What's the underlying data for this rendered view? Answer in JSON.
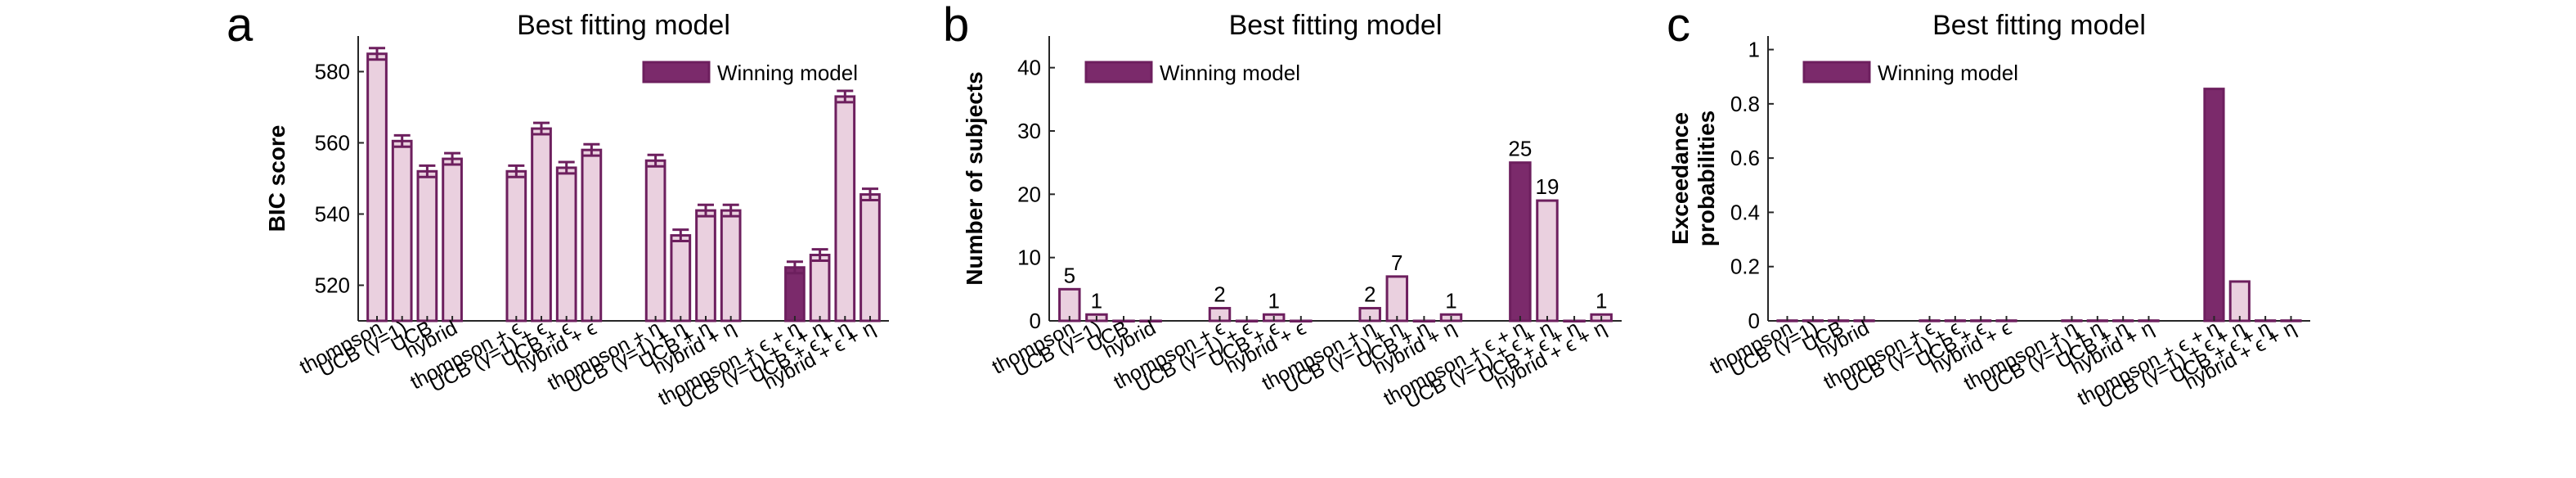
{
  "figure": {
    "colors": {
      "bar_fill": "#ead0df",
      "bar_stroke": "#6d1f5e",
      "winning_fill": "#7b2a6b",
      "error_bar": "#6d1f5e"
    }
  },
  "chart_data": [
    {
      "panel_letter": "a",
      "type": "bar",
      "title": "Best fitting model",
      "xlabel": "",
      "ylabel": "BIC score",
      "ylim": [
        510,
        590
      ],
      "yticks": [
        520,
        540,
        560,
        580
      ],
      "legend": {
        "label": "Winning model",
        "placement": "top-right"
      },
      "categories": [
        "thompson",
        "UCB (γ=1)",
        "UCB",
        "hybrid",
        "thompson + ϵ",
        "UCB (γ=1) + ϵ",
        "UCB + ϵ",
        "hybrid + ϵ",
        "thompson + η",
        "UCB (γ=1) + η",
        "UCB + η",
        "hybrid + η",
        "thompson + ϵ + η",
        "UCB (γ=1) + ϵ + η",
        "UCB + ϵ + η",
        "hybrid + ϵ + η"
      ],
      "groups": [
        4,
        4,
        4,
        4
      ],
      "values": [
        585,
        560.5,
        552,
        555.5,
        552,
        564,
        553,
        558,
        555,
        534,
        541,
        541,
        525,
        528.5,
        573,
        545.5
      ],
      "errors": [
        1.6,
        1.6,
        1.6,
        1.6,
        1.6,
        1.6,
        1.6,
        1.6,
        1.6,
        1.6,
        1.6,
        1.6,
        1.6,
        1.6,
        1.6,
        1.6
      ],
      "winning_index": 12,
      "data_labels": []
    },
    {
      "panel_letter": "b",
      "type": "bar",
      "title": "Best fitting model",
      "xlabel": "",
      "ylabel": "Number of subjects",
      "ylim": [
        0,
        45
      ],
      "yticks": [
        0,
        10,
        20,
        30,
        40
      ],
      "legend": {
        "label": "Winning model",
        "placement": "top-left"
      },
      "categories": [
        "thompson",
        "UCB (γ=1)",
        "UCB",
        "hybrid",
        "thompson + ϵ",
        "UCB (γ=1) + ϵ",
        "UCB + ϵ",
        "hybrid + ϵ",
        "thompson + η",
        "UCB (γ=1) + η",
        "UCB + η",
        "hybrid + η",
        "thompson + ϵ + η",
        "UCB (γ=1) + ϵ + η",
        "UCB + ϵ + η",
        "hybrid + ϵ + η"
      ],
      "groups": [
        4,
        4,
        4,
        4
      ],
      "values": [
        5,
        1,
        0,
        0,
        2,
        0,
        1,
        0,
        2,
        7,
        0,
        1,
        25,
        19,
        0,
        1
      ],
      "winning_index": 12,
      "data_labels": [
        "5",
        "1",
        "",
        "",
        "2",
        "",
        "1",
        "",
        "2",
        "7",
        "",
        "1",
        "25",
        "19",
        "",
        "1"
      ]
    },
    {
      "panel_letter": "c",
      "type": "bar",
      "title": "Best fitting model",
      "xlabel": "",
      "ylabel": [
        "Exceedance",
        "probabilities"
      ],
      "ylim": [
        0,
        1.05
      ],
      "yticks": [
        0,
        0.2,
        0.4,
        0.6,
        0.8,
        1
      ],
      "legend": {
        "label": "Winning model",
        "placement": "top-left"
      },
      "categories": [
        "thompson",
        "UCB (γ=1)",
        "UCB",
        "hybrid",
        "thompson + ϵ",
        "UCB (γ=1) + ϵ",
        "UCB + ϵ",
        "hybrid + ϵ",
        "thompson + η",
        "UCB (γ=1) + η",
        "UCB + η",
        "hybrid + η",
        "thompson + ϵ + η",
        "UCB (γ=1) + ϵ + η",
        "UCB + ϵ + η",
        "hybrid + ϵ + η"
      ],
      "groups": [
        4,
        4,
        4,
        4
      ],
      "values": [
        0.001,
        0.001,
        0.001,
        0.001,
        0.001,
        0.001,
        0.001,
        0.001,
        0.001,
        0.001,
        0.001,
        0.001,
        0.855,
        0.145,
        0.001,
        0.001
      ],
      "winning_index": 12,
      "data_labels": []
    }
  ]
}
